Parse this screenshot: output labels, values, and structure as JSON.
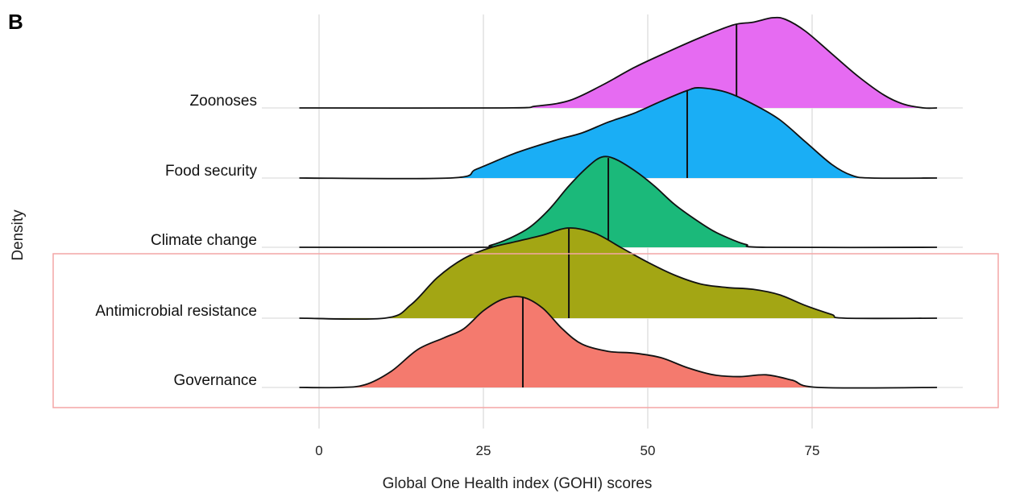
{
  "panel_label": "B",
  "chart_data": {
    "type": "ridgeline",
    "xlabel": "Global One Health index (GOHI) scores",
    "ylabel": "Density",
    "xlim": [
      -3,
      94
    ],
    "xticks": [
      0,
      25,
      50,
      75
    ],
    "grid": true,
    "highlight": {
      "categories": [
        "Antimicrobial resistance",
        "Governance"
      ],
      "color": "#f4a6a6"
    },
    "series": [
      {
        "name": "Zoonoses",
        "color": "#e66bf2",
        "median": 63.5,
        "x": [
          -3,
          28,
          33,
          38,
          43,
          48,
          53,
          58,
          63,
          66,
          69,
          71,
          74,
          78,
          82,
          86,
          89,
          92,
          94
        ],
        "density": [
          0,
          0,
          0.02,
          0.08,
          0.25,
          0.45,
          0.62,
          0.78,
          0.92,
          0.95,
          1.0,
          0.98,
          0.85,
          0.6,
          0.35,
          0.14,
          0.04,
          0,
          0
        ]
      },
      {
        "name": "Food security",
        "color": "#1aaef5",
        "median": 56,
        "x": [
          -3,
          20,
          24,
          30,
          36,
          40,
          44,
          48,
          52,
          56,
          58,
          62,
          66,
          70,
          74,
          78,
          81,
          84,
          94
        ],
        "density": [
          0,
          0,
          0.1,
          0.28,
          0.42,
          0.5,
          0.62,
          0.72,
          0.85,
          0.97,
          1.0,
          0.95,
          0.82,
          0.65,
          0.4,
          0.15,
          0.03,
          0,
          0
        ]
      },
      {
        "name": "Climate change",
        "color": "#1bb97a",
        "median": 44,
        "x": [
          -3,
          24,
          26,
          29,
          32,
          35,
          38,
          41,
          43,
          45,
          48,
          51,
          54,
          57,
          60,
          63,
          65,
          68,
          94
        ],
        "density": [
          0,
          0,
          0.02,
          0.1,
          0.22,
          0.42,
          0.68,
          0.9,
          1.0,
          0.98,
          0.85,
          0.68,
          0.48,
          0.32,
          0.18,
          0.08,
          0.03,
          0,
          0
        ]
      },
      {
        "name": "Antimicrobial resistance",
        "color": "#a3a614",
        "median": 38,
        "x": [
          -3,
          10,
          14,
          18,
          22,
          26,
          30,
          34,
          38,
          42,
          46,
          50,
          54,
          58,
          62,
          66,
          70,
          74,
          78,
          80,
          94
        ],
        "density": [
          0,
          0,
          0.15,
          0.45,
          0.66,
          0.78,
          0.85,
          0.92,
          1.0,
          0.94,
          0.78,
          0.62,
          0.48,
          0.38,
          0.34,
          0.32,
          0.26,
          0.14,
          0.04,
          0,
          0
        ]
      },
      {
        "name": "Governance",
        "color": "#f47a6e",
        "median": 31,
        "x": [
          -3,
          3,
          7,
          11,
          15,
          19,
          22,
          25,
          28,
          31,
          34,
          37,
          40,
          44,
          48,
          52,
          56,
          60,
          64,
          68,
          72,
          76,
          94
        ],
        "density": [
          0,
          0,
          0.03,
          0.18,
          0.42,
          0.55,
          0.65,
          0.85,
          0.98,
          1.0,
          0.88,
          0.65,
          0.48,
          0.4,
          0.38,
          0.33,
          0.22,
          0.14,
          0.12,
          0.14,
          0.08,
          0,
          0
        ]
      }
    ]
  }
}
